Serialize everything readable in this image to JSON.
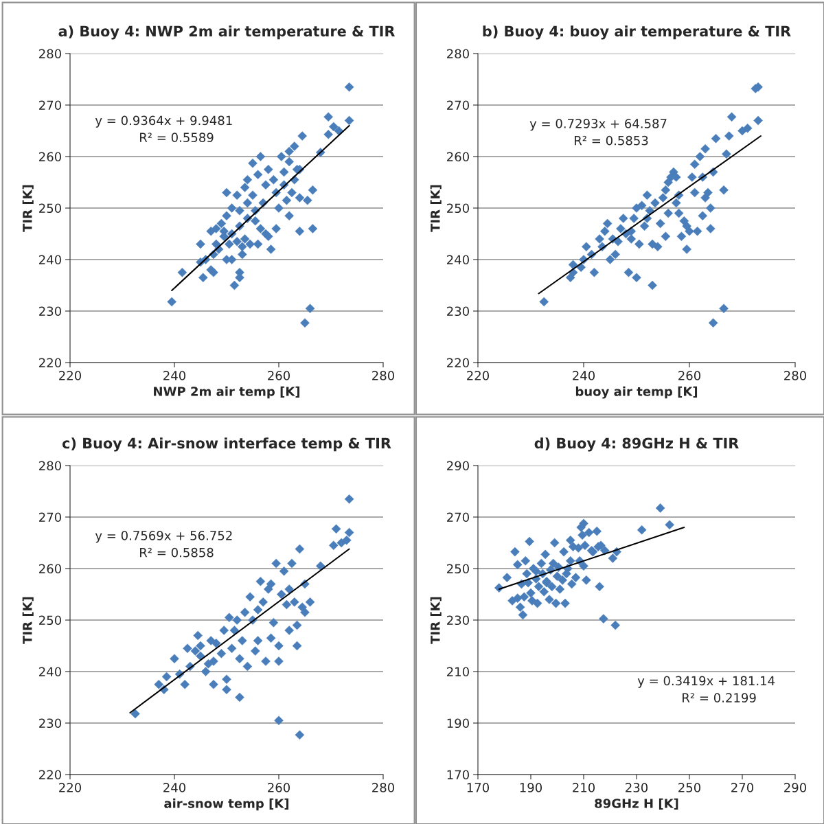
{
  "chart_data": [
    {
      "type": "scatter",
      "title": "a) Buoy 4: NWP 2m air temperature & TIR",
      "xlabel": "NWP 2m air temp [K]",
      "ylabel": "TIR [K]",
      "xlim": [
        220,
        280
      ],
      "xticks": [
        220,
        240,
        260,
        280
      ],
      "ylim": [
        220,
        280
      ],
      "yticks": [
        220,
        230,
        240,
        250,
        260,
        270,
        280
      ],
      "grid": "y",
      "legend": false,
      "annotations": [
        "y = 0.9364x + 9.9481",
        "R² = 0.5589"
      ],
      "series": [
        {
          "color": "#4a7ebb",
          "marker": "diamond",
          "x": [
            239.5,
            241.5,
            245,
            245,
            245.5,
            247,
            247.5,
            246,
            250,
            251.5,
            252.5,
            252.5,
            253,
            253.5,
            265,
            266,
            273.5,
            273.5,
            269.5,
            270.5,
            271.5,
            269.5,
            268,
            264.5,
            263,
            262,
            260.5,
            262,
            263.5,
            261,
            264,
            259,
            258,
            256,
            256.5,
            255,
            254,
            253.5,
            252,
            251,
            252.5,
            254,
            250,
            249,
            248,
            247,
            249.5,
            250.5,
            252,
            251,
            252.5,
            254,
            255.5,
            256.5,
            257.5,
            258,
            256,
            258.5,
            260,
            261.5,
            262.5,
            264,
            265.5,
            266.5,
            264,
            262,
            259.5,
            257,
            255,
            261,
            263,
            257.5,
            254.5,
            253,
            248.5,
            250,
            251,
            247.5,
            248,
            249.5,
            255.5,
            259.5,
            266.5
          ],
          "values": [
            231.8,
            237.5,
            243,
            239.5,
            236.5,
            238,
            237.5,
            240,
            253,
            235,
            237.5,
            236.5,
            241,
            244,
            227.7,
            230.5,
            273.5,
            267,
            267.7,
            265.8,
            265,
            264.3,
            260.8,
            264,
            262,
            261,
            260,
            259,
            257.5,
            257,
            257.5,
            255.5,
            257.5,
            256.5,
            260,
            258.7,
            255.5,
            254,
            252.5,
            250,
            249.5,
            251,
            248.5,
            247,
            246,
            245.5,
            244.5,
            243,
            243.5,
            245,
            246.5,
            248,
            247.5,
            246,
            245,
            244.5,
            243,
            242,
            250,
            251.5,
            253,
            252,
            251.5,
            253.5,
            245.5,
            248.5,
            253,
            251,
            252.5,
            254.5,
            255.5,
            254.5,
            243,
            242.5,
            242,
            240,
            240,
            241,
            243,
            245.5,
            249.5,
            246,
            246
          ]
        },
        {
          "type": "line",
          "color": "#000000",
          "marker": "none",
          "x": [
            239.5,
            273.5
          ],
          "values": [
            234,
            266
          ]
        }
      ]
    },
    {
      "type": "scatter",
      "title": "b) Buoy 4: buoy air temperature & TIR",
      "xlabel": "buoy air temp [K]",
      "ylabel": "TIR [K]",
      "xlim": [
        220,
        280
      ],
      "xticks": [
        220,
        240,
        260,
        280
      ],
      "ylim": [
        220,
        280
      ],
      "yticks": [
        220,
        230,
        240,
        250,
        260,
        270,
        280
      ],
      "grid": "y",
      "legend": false,
      "annotations": [
        "y = 0.7293x + 64.587",
        "R² = 0.5853"
      ],
      "series": [
        {
          "color": "#4a7ebb",
          "marker": "diamond",
          "x": [
            232.5,
            237.5,
            238,
            238,
            239.5,
            240,
            240.5,
            241.5,
            242,
            243,
            243.5,
            244,
            244.5,
            245,
            246,
            245.5,
            246.5,
            247,
            247.5,
            248,
            248.5,
            249,
            249.5,
            250,
            250.5,
            251,
            251.5,
            252,
            252.5,
            253,
            253,
            253.5,
            254,
            254.5,
            255,
            255.5,
            255.5,
            256,
            256.5,
            257,
            257.5,
            258,
            258.5,
            258,
            259,
            259.5,
            259.5,
            260,
            260.5,
            261,
            261.5,
            262,
            262.5,
            263,
            263,
            263.5,
            264,
            264.5,
            264,
            265,
            264.5,
            266.5,
            266.5,
            267,
            267.5,
            268,
            270,
            271,
            272.5,
            273,
            273,
            262.5,
            261,
            257.5,
            256,
            252,
            249,
            250
          ],
          "values": [
            231.8,
            236.5,
            237.5,
            239,
            238.5,
            240,
            242.5,
            241,
            237.5,
            244,
            242.5,
            245.5,
            247,
            240,
            241,
            244,
            243.5,
            246,
            248,
            245,
            237.5,
            244,
            248,
            236.5,
            243,
            250.5,
            246.5,
            248,
            249.5,
            235,
            243,
            251,
            242.5,
            247,
            252,
            253.5,
            244.5,
            249,
            256,
            257,
            251,
            252.5,
            244.5,
            249,
            247.5,
            246.5,
            242,
            245.5,
            256,
            258.5,
            245.5,
            260,
            256,
            261.5,
            252,
            253,
            250,
            257,
            246,
            263.5,
            227.7,
            230.5,
            253.5,
            260.5,
            264,
            267.7,
            265,
            265.5,
            273.2,
            273.5,
            267,
            248.5,
            253,
            256,
            255,
            252.5,
            245.5,
            250
          ]
        },
        {
          "type": "line",
          "color": "#000000",
          "marker": "none",
          "x": [
            231.5,
            273.5
          ],
          "values": [
            233.4,
            264
          ]
        }
      ]
    },
    {
      "type": "scatter",
      "title": "c) Buoy 4: Air-snow interface temp & TIR",
      "xlabel": "air-snow temp [K]",
      "ylabel": "TIR [K]",
      "xlim": [
        220,
        280
      ],
      "xticks": [
        220,
        240,
        260,
        280
      ],
      "ylim": [
        220,
        280
      ],
      "yticks": [
        220,
        230,
        240,
        250,
        260,
        270,
        280
      ],
      "grid": "y",
      "legend": false,
      "annotations": [
        "y = 0.7569x + 56.752",
        "R² = 0.5858"
      ],
      "series": [
        {
          "color": "#4a7ebb",
          "marker": "diamond",
          "x": [
            232.5,
            237,
            238,
            238.5,
            240,
            241,
            242,
            242.5,
            243,
            244,
            244.5,
            245,
            246,
            246.5,
            247,
            247.5,
            248,
            249,
            249.5,
            250,
            250,
            250.5,
            251,
            251.5,
            252,
            252.5,
            252.5,
            253,
            253.5,
            254,
            254.5,
            255,
            255.5,
            256,
            256.5,
            257,
            257.5,
            258,
            258.5,
            259,
            259.5,
            260,
            260,
            260,
            260.5,
            261,
            261.5,
            262,
            262.5,
            263,
            263.5,
            264,
            264,
            264.5,
            265,
            266,
            265,
            268,
            270.5,
            271,
            272,
            273,
            273.5,
            273.5,
            263.5,
            256,
            247.5,
            245,
            258.5,
            262
          ],
          "values": [
            231.8,
            237.5,
            236.5,
            239,
            242.5,
            239.5,
            237.5,
            244.5,
            241,
            244,
            247,
            245,
            240,
            241.5,
            246,
            237.5,
            245.5,
            243.5,
            248,
            238.5,
            236.5,
            250.5,
            244.5,
            248,
            250,
            242.5,
            235,
            246,
            251.5,
            241,
            254.5,
            250,
            244,
            252,
            257.5,
            253.5,
            242,
            256,
            246.5,
            249.5,
            261,
            245,
            242,
            230.5,
            255,
            259.5,
            253,
            248,
            261,
            253.5,
            245,
            263.8,
            227.7,
            252.5,
            251.5,
            253.5,
            257,
            260.5,
            264.5,
            267.7,
            265,
            265.5,
            267,
            273.5,
            249,
            246,
            242,
            243,
            257,
            256
          ]
        },
        {
          "type": "line",
          "color": "#000000",
          "marker": "none",
          "x": [
            231.5,
            273.5
          ],
          "values": [
            232,
            263.8
          ]
        }
      ]
    },
    {
      "type": "scatter",
      "title": "d) Buoy 4: 89GHz H & TIR",
      "xlabel": "89GHz H [K]",
      "ylabel": "TIR [K]",
      "xlim": [
        170,
        290
      ],
      "xticks": [
        170,
        190,
        210,
        230,
        250,
        270,
        290
      ],
      "ylim": [
        170,
        290
      ],
      "yticks": [
        170,
        190,
        210,
        230,
        250,
        270,
        290
      ],
      "grid": "y",
      "legend": false,
      "annotations": [
        "y = 0.3419x + 181.14",
        "R² = 0.2199"
      ],
      "series": [
        {
          "color": "#4a7ebb",
          "marker": "diamond",
          "x": [
            178,
            181,
            183,
            184,
            185,
            185,
            186,
            186.5,
            187,
            187.5,
            188,
            188.5,
            189,
            189.5,
            190,
            190.5,
            191,
            192,
            192.5,
            193,
            194,
            194.5,
            195,
            195.5,
            196,
            197,
            197.5,
            198,
            198.5,
            199,
            199.5,
            200,
            200.5,
            201,
            202,
            202.5,
            203,
            203.5,
            204,
            205,
            205.5,
            206,
            207,
            208,
            208.5,
            209,
            209.5,
            210,
            210.5,
            211,
            212,
            213,
            213.5,
            215,
            215.5,
            216,
            216.5,
            217.5,
            218,
            221,
            222,
            222.5,
            232,
            239,
            242.5,
            196,
            192,
            205,
            210
          ],
          "values": [
            242.5,
            246.5,
            237.5,
            256.5,
            251.5,
            238.5,
            235,
            244,
            232,
            239,
            253,
            248,
            244.5,
            260.5,
            240.5,
            237.5,
            250,
            246,
            236.5,
            243,
            252,
            248,
            241,
            255.5,
            245,
            238,
            249.5,
            243,
            252,
            260,
            236.5,
            247,
            250.5,
            242,
            245.5,
            256.5,
            236.5,
            248,
            250,
            261,
            244,
            258.5,
            246.5,
            258,
            253,
            266,
            263,
            267.5,
            259,
            245.5,
            264,
            257,
            256.5,
            264.5,
            258.5,
            243,
            259,
            230.5,
            257,
            254,
            228,
            256.5,
            265,
            273.5,
            267,
            244.5,
            249,
            253,
            251
          ]
        },
        {
          "type": "line",
          "color": "#000000",
          "marker": "none",
          "x": [
            178,
            248
          ],
          "values": [
            242,
            266
          ]
        }
      ]
    }
  ]
}
